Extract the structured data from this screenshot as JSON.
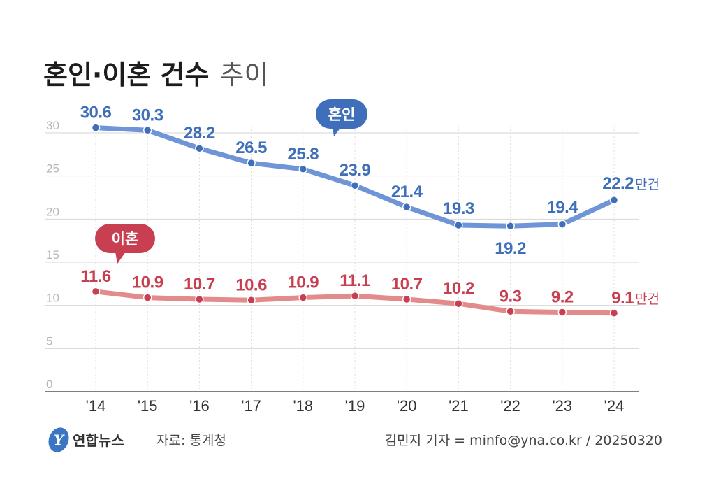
{
  "colors": {
    "marriage": "#3f6fba",
    "marriage_line": "#6f95d6",
    "divorce": "#c93f52",
    "divorce_line": "#e38a8a",
    "grid": "#d6d6d6"
  },
  "chart_data": {
    "type": "line",
    "title": "혼인·이혼 건수",
    "title_suffix": "추이",
    "categories": [
      "'14",
      "'15",
      "'16",
      "'17",
      "'18",
      "'19",
      "'20",
      "'21",
      "'22",
      "'23",
      "'24"
    ],
    "ylim": [
      0,
      30
    ],
    "yticks": [
      "0",
      "5",
      "10",
      "15",
      "20",
      "25",
      "30"
    ],
    "grid": true,
    "unit": "만건",
    "series": [
      {
        "name": "혼인",
        "values": [
          30.6,
          30.3,
          28.2,
          26.5,
          25.8,
          23.9,
          21.4,
          19.3,
          19.2,
          19.4,
          22.2
        ],
        "labels": [
          "30.6",
          "30.3",
          "28.2",
          "26.5",
          "25.8",
          "23.9",
          "21.4",
          "19.3",
          "19.2",
          "19.4",
          "22.2"
        ]
      },
      {
        "name": "이혼",
        "values": [
          11.6,
          10.9,
          10.7,
          10.6,
          10.9,
          11.1,
          10.7,
          10.2,
          9.3,
          9.2,
          9.1
        ],
        "labels": [
          "11.6",
          "10.9",
          "10.7",
          "10.6",
          "10.9",
          "11.1",
          "10.7",
          "10.2",
          "9.3",
          "9.2",
          "9.1"
        ]
      }
    ]
  },
  "footer": {
    "logo_text": "연합뉴스",
    "logo_mark": "Y",
    "source": "자료: 통계청",
    "credit": "김민지 기자 = minfo@yna.co.kr / 20250320"
  }
}
